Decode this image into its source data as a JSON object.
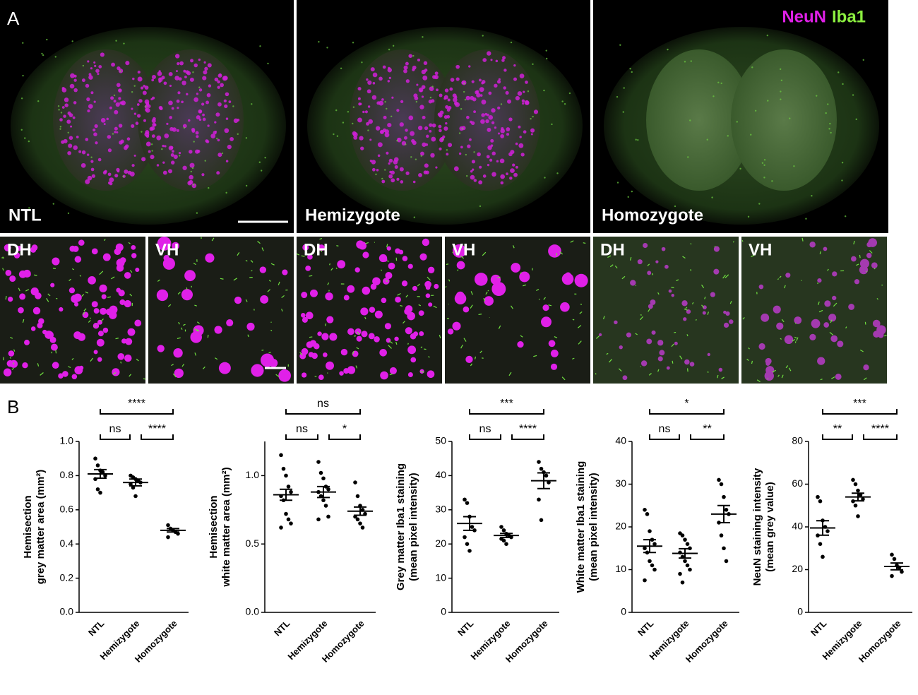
{
  "figure": {
    "panel_a": "A",
    "panel_b": "B",
    "stain1": "NeuN",
    "stain2": "Iba1",
    "groups": [
      "NTL",
      "Hemizygote",
      "Homozygote"
    ],
    "regions": [
      "DH",
      "VH"
    ]
  },
  "chart_data": [
    {
      "type": "dot",
      "ylabel": [
        "Hemisection",
        "grey matter area (mm²)"
      ],
      "categories": [
        "NTL",
        "Hemizygote",
        "Homozygote"
      ],
      "color": "#000000",
      "groups": [
        {
          "values": [
            0.9,
            0.86,
            0.83,
            0.82,
            0.8,
            0.78,
            0.72,
            0.7
          ],
          "mean": 0.81,
          "sem": 0.025
        },
        {
          "values": [
            0.8,
            0.79,
            0.78,
            0.77,
            0.76,
            0.75,
            0.73,
            0.68
          ],
          "mean": 0.76,
          "sem": 0.02
        },
        {
          "values": [
            0.51,
            0.49,
            0.48,
            0.47,
            0.46,
            0.44
          ],
          "mean": 0.48,
          "sem": 0.01
        }
      ],
      "ylim": [
        0,
        1.0
      ],
      "yticks": [
        {
          "value": 0,
          "label": "0.0"
        },
        0.2,
        0.4,
        0.6,
        0.8,
        {
          "value": 1,
          "label": "1.0"
        }
      ],
      "significance": [
        "****",
        "ns",
        "****"
      ]
    },
    {
      "type": "dot",
      "ylabel": [
        "Hemisection",
        "white matter area (mm²)"
      ],
      "categories": [
        "NTL",
        "Hemizygote",
        "Homozygote"
      ],
      "color": "#000000",
      "groups": [
        {
          "values": [
            1.15,
            1.05,
            1.0,
            0.92,
            0.88,
            0.85,
            0.82,
            0.72,
            0.68,
            0.65,
            0.62
          ],
          "mean": 0.86,
          "sem": 0.04
        },
        {
          "values": [
            1.1,
            1.02,
            0.98,
            0.92,
            0.9,
            0.88,
            0.85,
            0.82,
            0.78,
            0.7,
            0.68
          ],
          "mean": 0.88,
          "sem": 0.04
        },
        {
          "values": [
            0.95,
            0.85,
            0.78,
            0.75,
            0.72,
            0.7,
            0.68,
            0.65,
            0.62
          ],
          "mean": 0.74,
          "sem": 0.03
        }
      ],
      "ylim": [
        0,
        1.25
      ],
      "yticks": [
        {
          "value": 0,
          "label": "0.0"
        },
        0.5,
        {
          "value": 1,
          "label": "1.0"
        }
      ],
      "significance": [
        "ns",
        "ns",
        "*"
      ]
    },
    {
      "type": "dot",
      "ylabel": [
        "Grey matter Iba1 staining",
        "(mean pixel intensity)"
      ],
      "categories": [
        "NTL",
        "Hemizygote",
        "Homozygote"
      ],
      "color": "#000000",
      "groups": [
        {
          "values": [
            33,
            32,
            28,
            25,
            24,
            22,
            20,
            18
          ],
          "mean": 26,
          "sem": 2
        },
        {
          "values": [
            25,
            24,
            23,
            22.5,
            22,
            21.5,
            21,
            20
          ],
          "mean": 22.5,
          "sem": 0.6
        },
        {
          "values": [
            44,
            42,
            41,
            40,
            38,
            33,
            27
          ],
          "mean": 38.5,
          "sem": 2.3
        }
      ],
      "ylim": [
        0,
        50
      ],
      "yticks": [
        0,
        10,
        20,
        30,
        40,
        50
      ],
      "significance": [
        "***",
        "ns",
        "****"
      ]
    },
    {
      "type": "dot",
      "ylabel": [
        "White matter Iba1 staining",
        "(mean pixel intensity)"
      ],
      "categories": [
        "NTL",
        "Hemizygote",
        "Homozygote"
      ],
      "color": "#000000",
      "groups": [
        {
          "values": [
            24,
            23,
            19,
            17,
            16,
            15,
            14,
            12,
            11,
            10,
            7.5
          ],
          "mean": 15.5,
          "sem": 1.5
        },
        {
          "values": [
            18.5,
            18,
            17,
            16,
            15,
            14,
            13,
            12,
            11,
            10,
            9,
            7
          ],
          "mean": 13.8,
          "sem": 1.1
        },
        {
          "values": [
            31,
            30,
            27,
            24,
            23,
            21,
            18,
            15,
            12
          ],
          "mean": 23,
          "sem": 2
        }
      ],
      "ylim": [
        0,
        40
      ],
      "yticks": [
        0,
        10,
        20,
        30,
        40
      ],
      "significance": [
        "*",
        "ns",
        "**"
      ]
    },
    {
      "type": "dot",
      "ylabel": [
        "NeuN staining intensity",
        "(mean grey value)"
      ],
      "categories": [
        "NTL",
        "Hemizygote",
        "Homozygote"
      ],
      "color": "#000000",
      "groups": [
        {
          "values": [
            54,
            52,
            43,
            40,
            38,
            36,
            32,
            26
          ],
          "mean": 39.5,
          "sem": 3.4
        },
        {
          "values": [
            62,
            60,
            57,
            55,
            53,
            52,
            50,
            45
          ],
          "mean": 54,
          "sem": 1.8
        },
        {
          "values": [
            27,
            25,
            22,
            21,
            19,
            17
          ],
          "mean": 21.5,
          "sem": 1.6
        }
      ],
      "ylim": [
        0,
        80
      ],
      "yticks": [
        0,
        20,
        40,
        60,
        80
      ],
      "significance": [
        "***",
        "**",
        "****"
      ]
    }
  ]
}
